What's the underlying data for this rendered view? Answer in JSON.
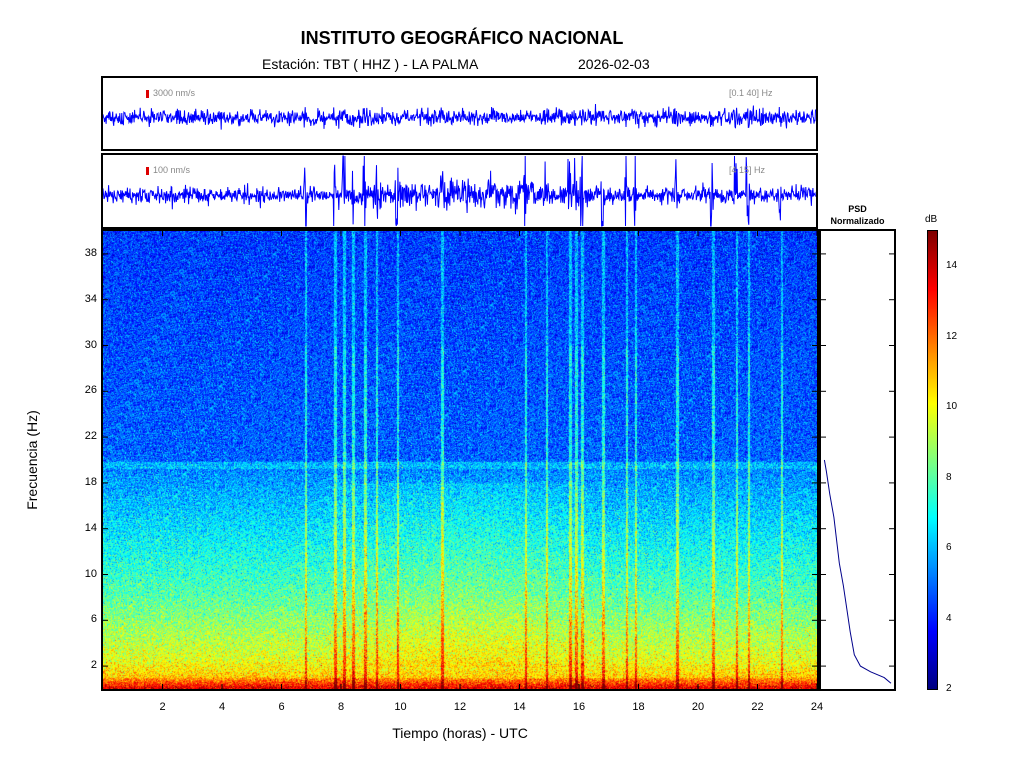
{
  "header": {
    "title": "INSTITUTO GEOGRÁFICO NACIONAL",
    "station": "Estación:  TBT ( HHZ ) - LA PALMA",
    "date": "2026-02-03"
  },
  "traces": [
    {
      "amplitude_label": "3000 nm/s",
      "band_label": "[0.1 40] Hz",
      "color": "#0000ff"
    },
    {
      "amplitude_label": "100 nm/s",
      "band_label": "[4 15] Hz",
      "color": "#0000ff"
    }
  ],
  "psd_panel": {
    "title_line1": "PSD",
    "title_line2": "Normalizado"
  },
  "chart_data": {
    "type": "heatmap",
    "xlabel": "Tiempo (horas) - UTC",
    "ylabel": "Frecuencia  (Hz)",
    "xlim": [
      0,
      24
    ],
    "ylim": [
      0,
      40
    ],
    "xticks": [
      2,
      4,
      6,
      8,
      10,
      12,
      14,
      16,
      18,
      20,
      22,
      24
    ],
    "yticks": [
      2,
      6,
      10,
      14,
      18,
      22,
      26,
      30,
      34,
      38
    ],
    "colorbar": {
      "unit": "dB",
      "min": 2,
      "max": 15,
      "ticks": [
        2,
        4,
        6,
        8,
        10,
        12,
        14
      ]
    },
    "transient_events_hours": [
      6.8,
      7.8,
      8.1,
      8.4,
      8.8,
      9.2,
      9.9,
      11.4,
      14.2,
      14.9,
      15.7,
      15.9,
      16.1,
      16.8,
      17.6,
      17.9,
      19.3,
      20.5,
      21.3,
      21.7,
      22.8
    ],
    "psd_curve": [
      {
        "freq": 20,
        "value": 0.02
      },
      {
        "freq": 19,
        "value": 0.05
      },
      {
        "freq": 17,
        "value": 0.1
      },
      {
        "freq": 15,
        "value": 0.16
      },
      {
        "freq": 13,
        "value": 0.2
      },
      {
        "freq": 11,
        "value": 0.24
      },
      {
        "freq": 9,
        "value": 0.3
      },
      {
        "freq": 7,
        "value": 0.35
      },
      {
        "freq": 5,
        "value": 0.4
      },
      {
        "freq": 3,
        "value": 0.46
      },
      {
        "freq": 2,
        "value": 0.55
      },
      {
        "freq": 1.5,
        "value": 0.7
      },
      {
        "freq": 1,
        "value": 0.9
      },
      {
        "freq": 0.5,
        "value": 1.0
      }
    ]
  },
  "colors": {
    "trace": "#0000ff",
    "psd_line": "#00008b",
    "amp_marker": "#dd0000"
  }
}
